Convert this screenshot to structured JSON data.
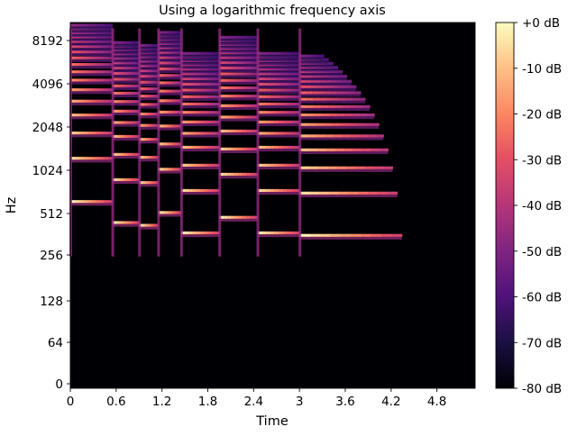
{
  "chart_data": {
    "type": "heatmap",
    "title": "Using a logarithmic frequency axis",
    "xlabel": "Time",
    "ylabel": "Hz",
    "x_ticks": [
      0,
      0.6,
      1.2,
      1.8,
      2.4,
      3,
      3.6,
      4.2,
      4.8
    ],
    "x_tick_labels": [
      "0",
      "0.6",
      "1.2",
      "1.8",
      "2.4",
      "3",
      "3.6",
      "4.2",
      "4.8"
    ],
    "xlim": [
      0,
      5.3
    ],
    "y_scale": "symlog",
    "y_ticks": [
      0,
      64,
      128,
      256,
      512,
      1024,
      2048,
      4096,
      8192
    ],
    "y_tick_labels": [
      "0",
      "64",
      "128",
      "256",
      "512",
      "1024",
      "2048",
      "4096",
      "8192"
    ],
    "ylim": [
      0,
      11025
    ],
    "colorbar": {
      "colormap": "magma",
      "range": [
        -80,
        0
      ],
      "ticks": [
        0,
        -10,
        -20,
        -30,
        -40,
        -50,
        -60,
        -70,
        -80
      ],
      "tick_labels": [
        "+0 dB",
        "-10 dB",
        "-20 dB",
        "-30 dB",
        "-40 dB",
        "-50 dB",
        "-60 dB",
        "-70 dB",
        "-80 dB"
      ]
    },
    "grid": false,
    "notes": [
      {
        "t_start": 0.0,
        "t_end": 0.55,
        "f0": 620
      },
      {
        "t_start": 0.55,
        "t_end": 0.9,
        "f0": 440
      },
      {
        "t_start": 0.9,
        "t_end": 1.15,
        "f0": 420
      },
      {
        "t_start": 1.15,
        "t_end": 1.45,
        "f0": 520
      },
      {
        "t_start": 1.45,
        "t_end": 1.95,
        "f0": 370
      },
      {
        "t_start": 1.95,
        "t_end": 2.45,
        "f0": 480
      },
      {
        "t_start": 2.45,
        "t_end": 3.0,
        "f0": 370
      },
      {
        "t_start": 3.0,
        "t_end": 4.4,
        "f0": 355
      }
    ]
  }
}
